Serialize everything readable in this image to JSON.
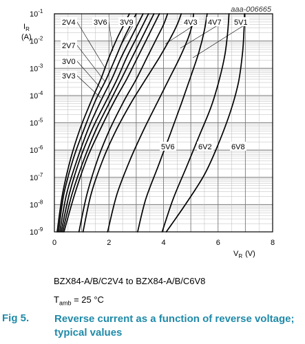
{
  "chart_data": {
    "type": "line",
    "code": "aaa-006665",
    "ylabel": "I",
    "ylabel_sub": "R",
    "ylabel_unit": "(A)",
    "xlabel": "V",
    "xlabel_sub": "R",
    "xlabel_unit": "(V)",
    "xlim": [
      0,
      8
    ],
    "ylim_exponent": [
      -9,
      -1
    ],
    "y_log_scale": true,
    "grid": true,
    "x_ticks": [
      "0",
      "2",
      "4",
      "6",
      "8"
    ],
    "y_tick_base": "10",
    "y_tick_exponents": [
      "-1",
      "-2",
      "-3",
      "-4",
      "-5",
      "-6",
      "-7",
      "-8",
      "-9"
    ],
    "series": [
      {
        "name": "2V4",
        "points": [
          [
            0.1,
            -9.0
          ],
          [
            0.3,
            -7.6
          ],
          [
            0.6,
            -6.3
          ],
          [
            0.95,
            -5.2
          ],
          [
            1.35,
            -4.2
          ],
          [
            1.7,
            -3.4
          ],
          [
            2.0,
            -2.6
          ],
          [
            2.3,
            -1.9
          ],
          [
            2.55,
            -1.4
          ],
          [
            2.75,
            -1.0
          ]
        ]
      },
      {
        "name": "2V7",
        "points": [
          [
            0.15,
            -9.0
          ],
          [
            0.35,
            -7.6
          ],
          [
            0.7,
            -6.3
          ],
          [
            1.1,
            -5.2
          ],
          [
            1.5,
            -4.2
          ],
          [
            1.9,
            -3.4
          ],
          [
            2.25,
            -2.6
          ],
          [
            2.55,
            -1.9
          ],
          [
            2.8,
            -1.4
          ],
          [
            3.0,
            -1.0
          ]
        ]
      },
      {
        "name": "3V0",
        "points": [
          [
            0.2,
            -9.0
          ],
          [
            0.45,
            -7.6
          ],
          [
            0.85,
            -6.3
          ],
          [
            1.25,
            -5.2
          ],
          [
            1.7,
            -4.2
          ],
          [
            2.1,
            -3.4
          ],
          [
            2.45,
            -2.6
          ],
          [
            2.8,
            -1.9
          ],
          [
            3.05,
            -1.4
          ],
          [
            3.25,
            -1.0
          ]
        ]
      },
      {
        "name": "3V3",
        "points": [
          [
            0.25,
            -9.0
          ],
          [
            0.55,
            -7.6
          ],
          [
            0.95,
            -6.3
          ],
          [
            1.4,
            -5.2
          ],
          [
            1.9,
            -4.2
          ],
          [
            2.3,
            -3.4
          ],
          [
            2.65,
            -2.6
          ],
          [
            3.0,
            -1.9
          ],
          [
            3.25,
            -1.4
          ],
          [
            3.45,
            -1.0
          ]
        ]
      },
      {
        "name": "3V6",
        "points": [
          [
            0.3,
            -9.0
          ],
          [
            0.65,
            -7.6
          ],
          [
            1.1,
            -6.3
          ],
          [
            1.55,
            -5.2
          ],
          [
            2.05,
            -4.2
          ],
          [
            2.45,
            -3.4
          ],
          [
            2.85,
            -2.6
          ],
          [
            3.2,
            -1.9
          ],
          [
            3.45,
            -1.4
          ],
          [
            3.65,
            -1.0
          ]
        ]
      },
      {
        "name": "3V9",
        "points": [
          [
            0.35,
            -9.0
          ],
          [
            0.75,
            -7.6
          ],
          [
            1.2,
            -6.3
          ],
          [
            1.7,
            -5.2
          ],
          [
            2.2,
            -4.2
          ],
          [
            2.65,
            -3.4
          ],
          [
            3.05,
            -2.6
          ],
          [
            3.4,
            -1.9
          ],
          [
            3.65,
            -1.4
          ],
          [
            3.85,
            -1.0
          ]
        ]
      },
      {
        "name": "4V3",
        "points": [
          [
            0.9,
            -9.0
          ],
          [
            1.2,
            -7.6
          ],
          [
            1.6,
            -6.3
          ],
          [
            2.05,
            -5.2
          ],
          [
            2.55,
            -4.2
          ],
          [
            3.0,
            -3.4
          ],
          [
            3.4,
            -2.6
          ],
          [
            3.75,
            -1.9
          ],
          [
            4.0,
            -1.4
          ],
          [
            4.15,
            -1.0
          ]
        ]
      },
      {
        "name": "4V7",
        "points": [
          [
            1.05,
            -9.0
          ],
          [
            1.35,
            -7.6
          ],
          [
            1.8,
            -6.3
          ],
          [
            2.3,
            -5.2
          ],
          [
            2.85,
            -4.2
          ],
          [
            3.35,
            -3.4
          ],
          [
            3.85,
            -2.6
          ],
          [
            4.25,
            -1.9
          ],
          [
            4.5,
            -1.4
          ],
          [
            4.65,
            -1.0
          ]
        ]
      },
      {
        "name": "5V1",
        "points": [
          [
            1.95,
            -9.0
          ],
          [
            2.3,
            -7.6
          ],
          [
            2.8,
            -6.3
          ],
          [
            3.3,
            -5.2
          ],
          [
            3.8,
            -4.2
          ],
          [
            4.2,
            -3.4
          ],
          [
            4.6,
            -2.6
          ],
          [
            4.9,
            -1.9
          ],
          [
            5.05,
            -1.4
          ],
          [
            5.1,
            -1.0
          ]
        ]
      },
      {
        "name": "5V6",
        "points": [
          [
            3.05,
            -9.0
          ],
          [
            3.35,
            -7.8
          ],
          [
            3.8,
            -6.6
          ],
          [
            4.25,
            -5.4
          ],
          [
            4.65,
            -4.3
          ],
          [
            5.0,
            -3.3
          ],
          [
            5.3,
            -2.4
          ],
          [
            5.5,
            -1.6
          ],
          [
            5.6,
            -1.0
          ]
        ]
      },
      {
        "name": "6V2",
        "points": [
          [
            3.95,
            -9.0
          ],
          [
            4.35,
            -7.8
          ],
          [
            4.85,
            -6.6
          ],
          [
            5.3,
            -5.5
          ],
          [
            5.75,
            -4.4
          ],
          [
            6.05,
            -3.4
          ],
          [
            6.25,
            -2.5
          ],
          [
            6.35,
            -1.7
          ],
          [
            6.4,
            -1.0
          ]
        ]
      },
      {
        "name": "6V8",
        "points": [
          [
            4.1,
            -9.0
          ],
          [
            4.8,
            -8.0
          ],
          [
            5.5,
            -6.9
          ],
          [
            6.0,
            -5.8
          ],
          [
            6.45,
            -4.6
          ],
          [
            6.75,
            -3.5
          ],
          [
            6.9,
            -2.4
          ],
          [
            6.95,
            -1.6
          ],
          [
            6.97,
            -1.0
          ]
        ]
      }
    ]
  },
  "caption": {
    "line1": "BZX84-A/B/C2V4 to BZX84-A/B/C6V8",
    "tamb_t": "T",
    "tamb_sub": "amb",
    "tamb_rest": " = 25 °C"
  },
  "figure": {
    "number": "Fig 5.",
    "title": "Reverse current as a function of reverse voltage; typical values"
  }
}
